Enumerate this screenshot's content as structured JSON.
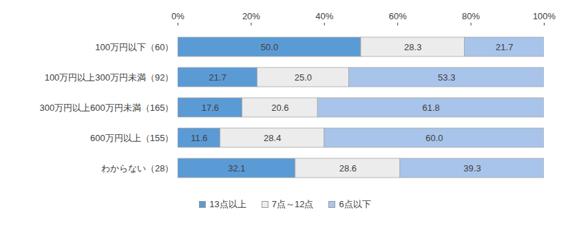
{
  "chart_data": {
    "type": "bar",
    "orientation": "horizontal",
    "stacked": true,
    "data_labels": true,
    "grid": false,
    "legend": "bottom",
    "categories": [
      "100万円以下（60）",
      "100万円以上300万円未満（92）",
      "300万円以上600万円未満（165）",
      "600万円以上（155）",
      "わからない（28）"
    ],
    "series": [
      {
        "name": "13点以上",
        "color": "#5b9bd5",
        "values": [
          50.0,
          21.7,
          17.6,
          11.6,
          32.1
        ],
        "value_labels": [
          "50.0",
          "21.7",
          "17.6",
          "11.6",
          "32.1"
        ]
      },
      {
        "name": "7点～12点",
        "color": "#ececec",
        "values": [
          28.3,
          25.0,
          20.6,
          28.4,
          28.6
        ],
        "value_labels": [
          "28.3",
          "25.0",
          "20.6",
          "28.4",
          "28.6"
        ]
      },
      {
        "name": "6点以下",
        "color": "#a9c4ea",
        "values": [
          21.7,
          53.3,
          61.8,
          60.0,
          39.3
        ],
        "value_labels": [
          "21.7",
          "53.3",
          "61.8",
          "60.0",
          "39.3"
        ]
      }
    ],
    "xlim": [
      0,
      100
    ],
    "xticks": [
      {
        "value": 0,
        "label": "0%"
      },
      {
        "value": 20,
        "label": "20%"
      },
      {
        "value": 40,
        "label": "40%"
      },
      {
        "value": 60,
        "label": "60%"
      },
      {
        "value": 80,
        "label": "80%"
      },
      {
        "value": 100,
        "label": "100%"
      }
    ]
  }
}
